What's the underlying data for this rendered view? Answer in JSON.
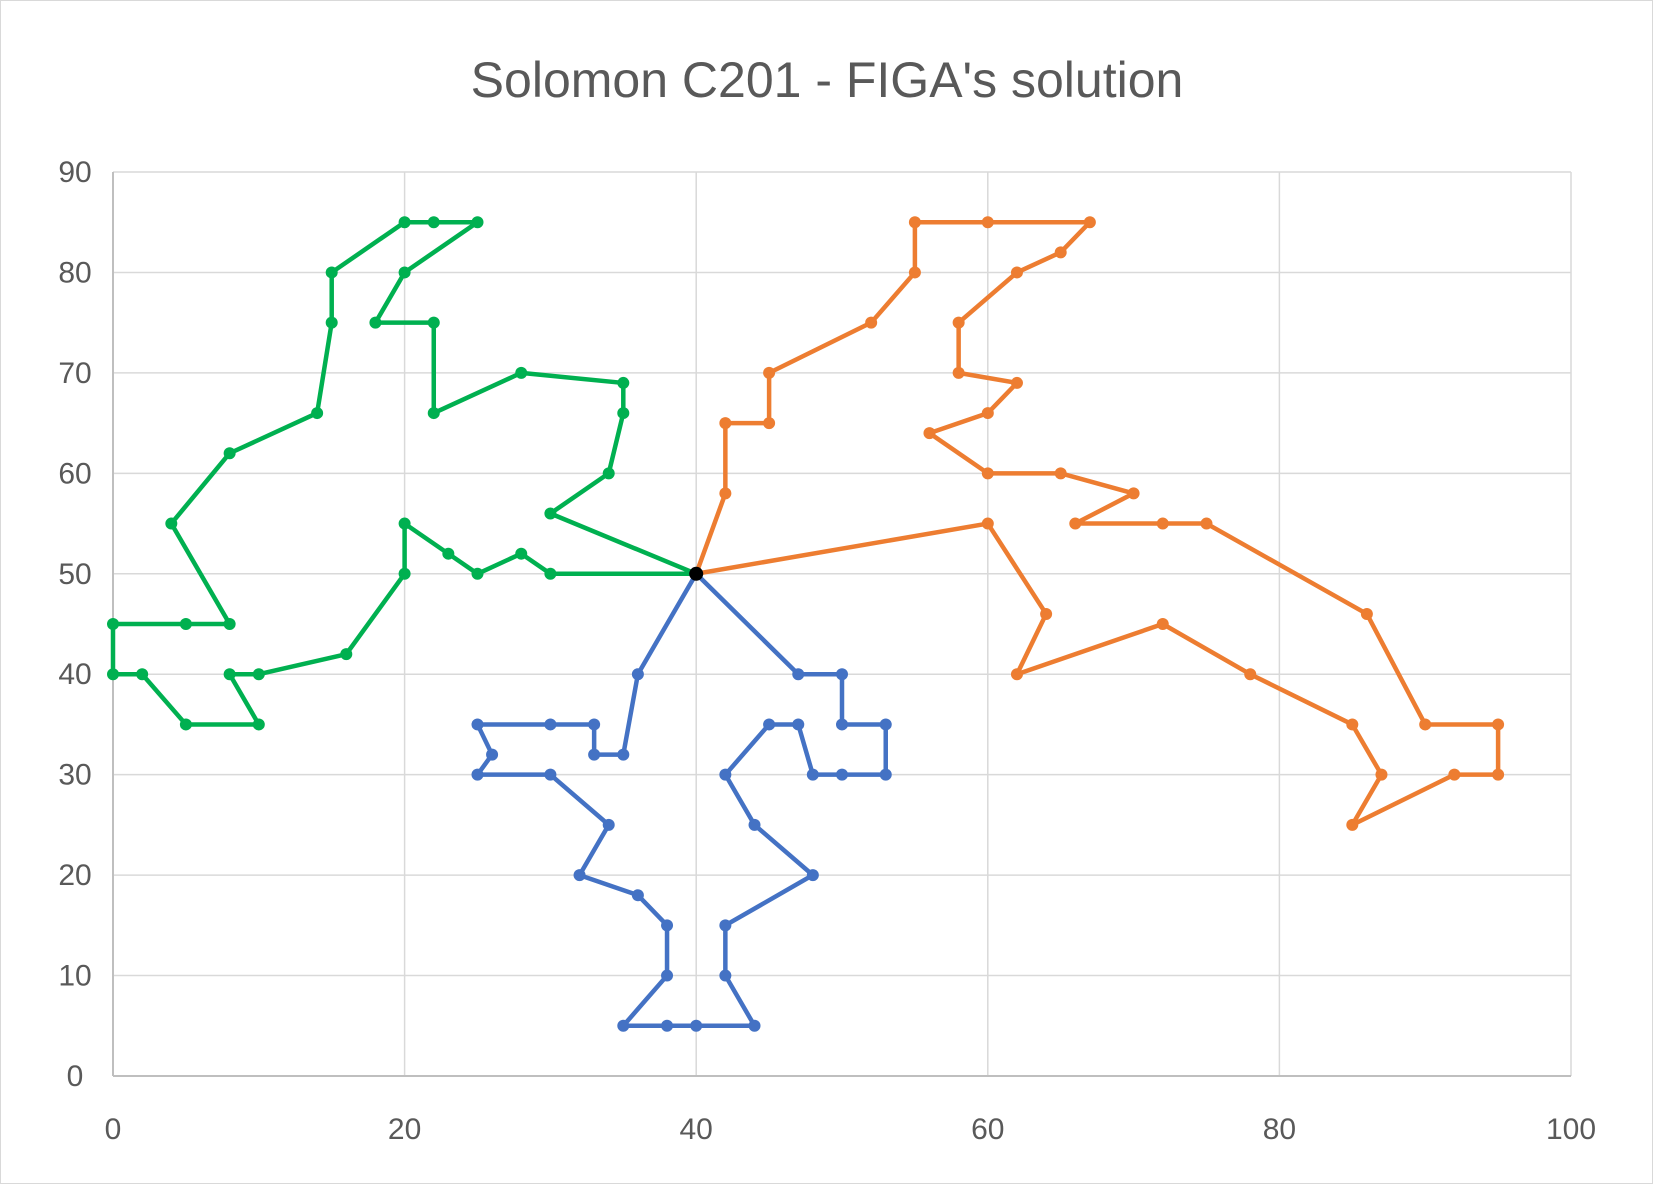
{
  "chart_data": {
    "type": "scatter",
    "title": "Solomon C201 - FIGA's solution",
    "xlabel": "",
    "ylabel": "",
    "xlim": [
      0,
      100
    ],
    "ylim": [
      0,
      90
    ],
    "x_ticks": [
      0,
      20,
      40,
      60,
      80,
      100
    ],
    "y_ticks": [
      0,
      10,
      20,
      30,
      40,
      50,
      60,
      70,
      80,
      90
    ],
    "grid": true,
    "legend": "none",
    "depot": {
      "x": 40,
      "y": 50,
      "color": "#000000"
    },
    "series": [
      {
        "color": "#00b050",
        "points": [
          [
            40,
            50
          ],
          [
            30,
            50
          ],
          [
            28,
            52
          ],
          [
            25,
            50
          ],
          [
            23,
            52
          ],
          [
            20,
            55
          ],
          [
            20,
            50
          ],
          [
            16,
            42
          ],
          [
            10,
            40
          ],
          [
            8,
            40
          ],
          [
            10,
            35
          ],
          [
            5,
            35
          ],
          [
            2,
            40
          ],
          [
            0,
            40
          ],
          [
            0,
            45
          ],
          [
            5,
            45
          ],
          [
            8,
            45
          ],
          [
            4,
            55
          ],
          [
            8,
            62
          ],
          [
            14,
            66
          ],
          [
            15,
            75
          ],
          [
            15,
            80
          ],
          [
            20,
            85
          ],
          [
            22,
            85
          ],
          [
            25,
            85
          ],
          [
            20,
            80
          ],
          [
            18,
            75
          ],
          [
            22,
            75
          ],
          [
            22,
            66
          ],
          [
            28,
            70
          ],
          [
            35,
            69
          ],
          [
            35,
            66
          ],
          [
            34,
            60
          ],
          [
            30,
            56
          ],
          [
            40,
            50
          ]
        ]
      },
      {
        "color": "#ed7d31",
        "points": [
          [
            40,
            50
          ],
          [
            42,
            58
          ],
          [
            42,
            65
          ],
          [
            45,
            65
          ],
          [
            45,
            70
          ],
          [
            52,
            75
          ],
          [
            55,
            80
          ],
          [
            55,
            85
          ],
          [
            60,
            85
          ],
          [
            67,
            85
          ],
          [
            65,
            82
          ],
          [
            62,
            80
          ],
          [
            58,
            75
          ],
          [
            58,
            70
          ],
          [
            62,
            69
          ],
          [
            60,
            66
          ],
          [
            56,
            64
          ],
          [
            60,
            60
          ],
          [
            65,
            60
          ],
          [
            70,
            58
          ],
          [
            66,
            55
          ],
          [
            72,
            55
          ],
          [
            75,
            55
          ],
          [
            86,
            46
          ],
          [
            90,
            35
          ],
          [
            95,
            35
          ],
          [
            95,
            30
          ],
          [
            92,
            30
          ],
          [
            85,
            25
          ],
          [
            87,
            30
          ],
          [
            85,
            35
          ],
          [
            78,
            40
          ],
          [
            72,
            45
          ],
          [
            62,
            40
          ],
          [
            64,
            46
          ],
          [
            60,
            55
          ],
          [
            40,
            50
          ]
        ]
      },
      {
        "color": "#4472c4",
        "points": [
          [
            40,
            50
          ],
          [
            36,
            40
          ],
          [
            35,
            32
          ],
          [
            33,
            32
          ],
          [
            33,
            35
          ],
          [
            30,
            35
          ],
          [
            25,
            35
          ],
          [
            26,
            32
          ],
          [
            25,
            30
          ],
          [
            30,
            30
          ],
          [
            34,
            25
          ],
          [
            32,
            20
          ],
          [
            36,
            18
          ],
          [
            38,
            15
          ],
          [
            38,
            10
          ],
          [
            35,
            5
          ],
          [
            38,
            5
          ],
          [
            40,
            5
          ],
          [
            44,
            5
          ],
          [
            42,
            10
          ],
          [
            42,
            15
          ],
          [
            48,
            20
          ],
          [
            44,
            25
          ],
          [
            42,
            30
          ],
          [
            45,
            35
          ],
          [
            47,
            35
          ],
          [
            48,
            30
          ],
          [
            50,
            30
          ],
          [
            53,
            30
          ],
          [
            53,
            35
          ],
          [
            50,
            35
          ],
          [
            50,
            40
          ],
          [
            47,
            40
          ],
          [
            40,
            50
          ]
        ]
      }
    ]
  }
}
